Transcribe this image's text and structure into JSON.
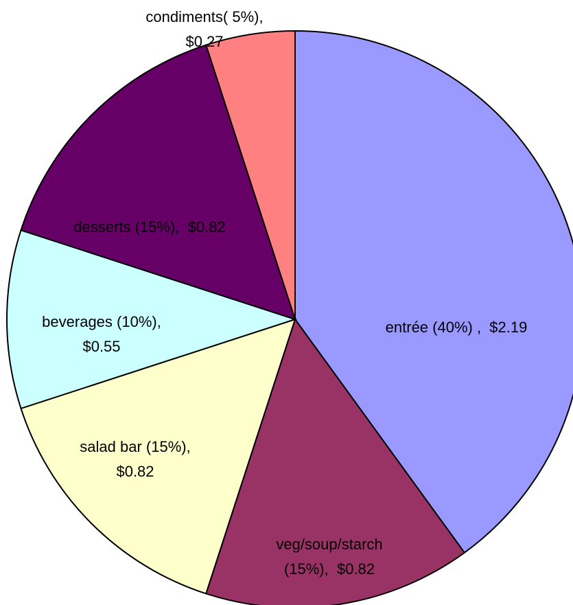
{
  "chart_data": {
    "type": "pie",
    "values": [
      40,
      15,
      15,
      10,
      15,
      5
    ],
    "value_labels": [
      "entrée (40%) ,  $2.19",
      "veg/soup/starch\n(15%),  $0.82",
      "salad bar (15%),\n$0.82",
      "beverages (10%),\n$0.55",
      "desserts (15%),  $0.82",
      "condiments( 5%),\n$0.27"
    ],
    "colors": [
      "#9999ff",
      "#993366",
      "#ffffcc",
      "#ccffff",
      "#660066",
      "#ff8080"
    ]
  }
}
